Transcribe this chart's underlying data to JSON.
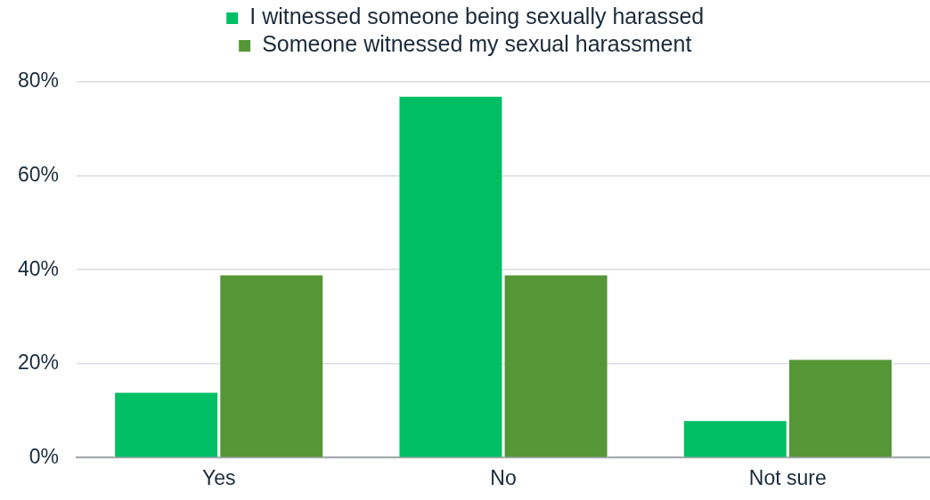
{
  "chart_data": {
    "type": "bar",
    "categories": [
      "Yes",
      "No",
      "Not sure"
    ],
    "series": [
      {
        "name": "I witnessed someone being sexually harassed",
        "color": "#00be64",
        "values": [
          14,
          77,
          8
        ]
      },
      {
        "name": "Someone witnessed my sexual harassment",
        "color": "#559636",
        "values": [
          39,
          39,
          21
        ]
      }
    ],
    "ylim": [
      0,
      80
    ],
    "yticks": [
      {
        "value": 0,
        "label": "0%"
      },
      {
        "value": 20,
        "label": "20%"
      },
      {
        "value": 40,
        "label": "40%"
      },
      {
        "value": 60,
        "label": "60%"
      },
      {
        "value": 80,
        "label": "80%"
      }
    ],
    "grid": "y",
    "legend": "top"
  }
}
